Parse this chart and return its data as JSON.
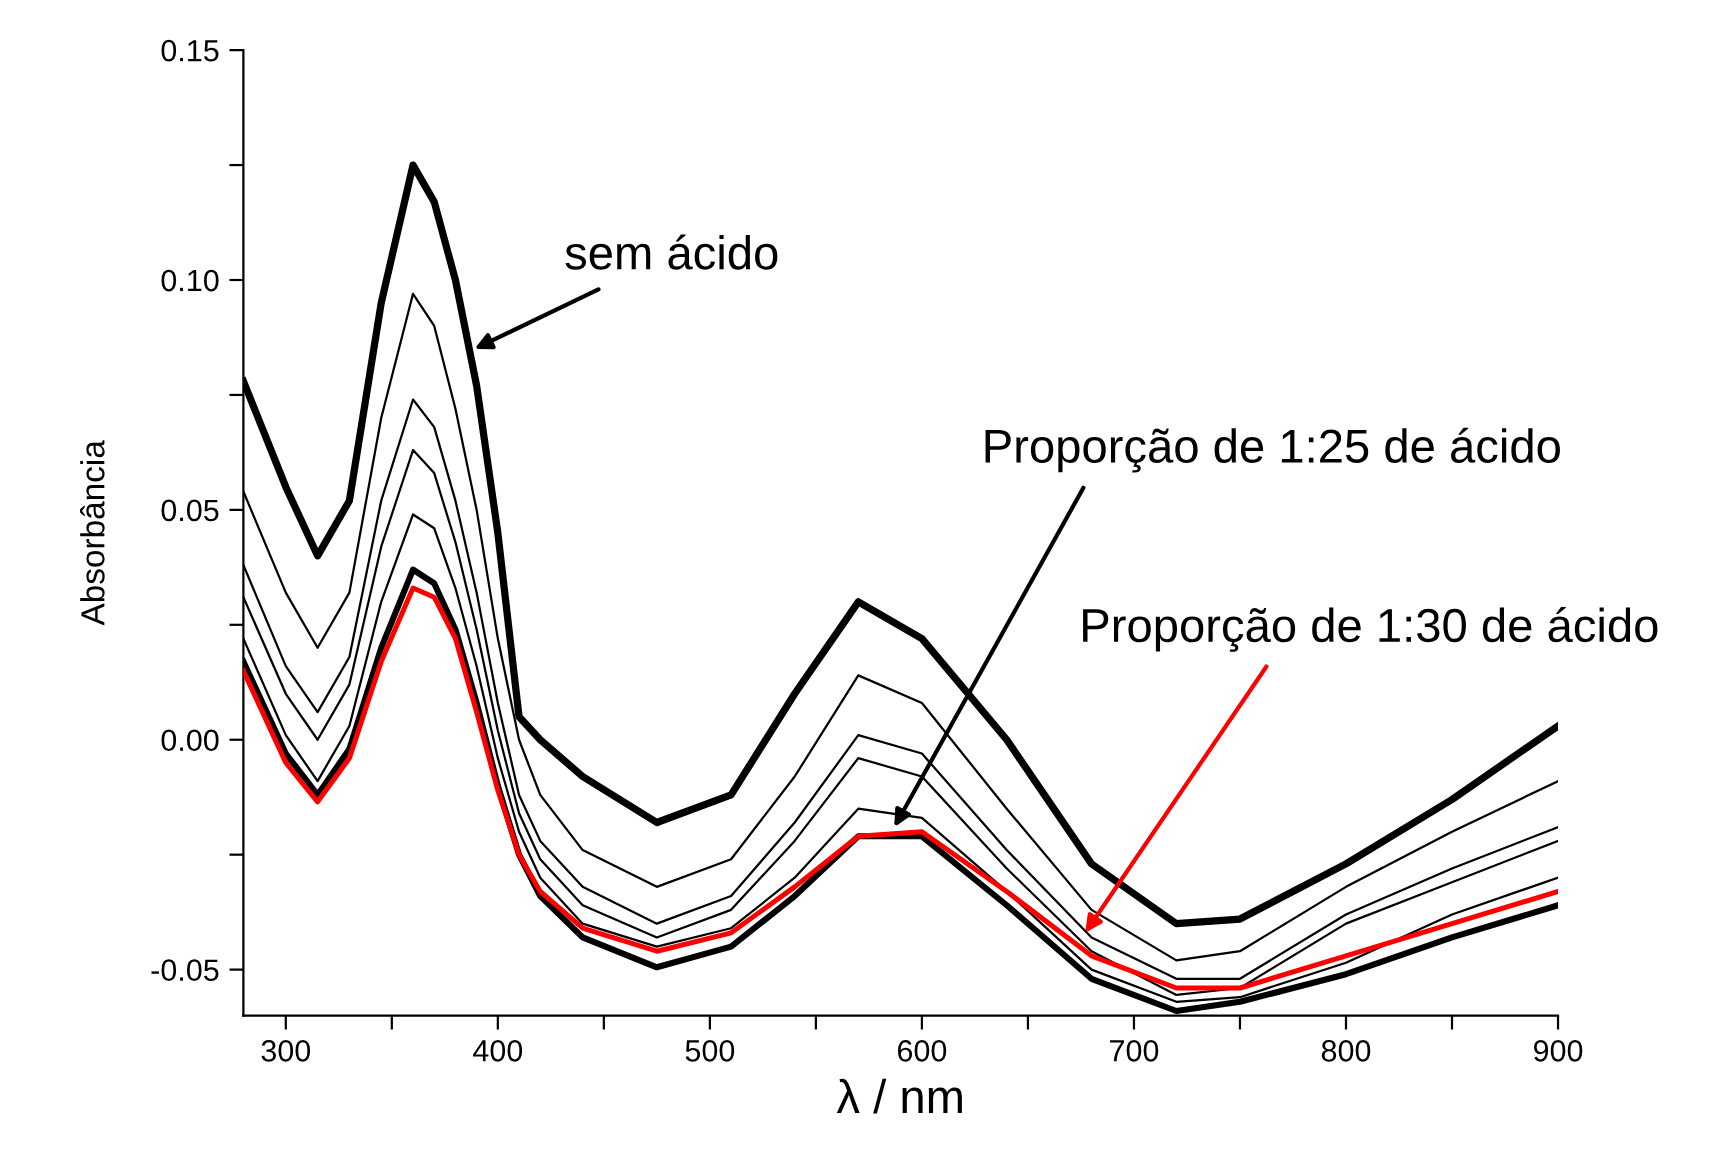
{
  "chart_data": {
    "type": "line",
    "xlabel": "λ / nm",
    "ylabel": "Absorbância",
    "x": [
      280,
      300,
      315,
      330,
      345,
      360,
      370,
      380,
      390,
      400,
      410,
      420,
      440,
      475,
      510,
      540,
      570,
      600,
      640,
      680,
      720,
      750,
      800,
      850,
      900
    ],
    "series": [
      {
        "color": "#000000",
        "values": [
          0.078,
          0.055,
          0.04,
          0.052,
          0.095,
          0.125,
          0.117,
          0.1,
          0.077,
          0.045,
          0.005,
          0.0,
          -0.008,
          -0.018,
          -0.012,
          0.01,
          0.03,
          0.022,
          0.0,
          -0.027,
          -0.04,
          -0.039,
          -0.027,
          -0.013,
          0.003
        ]
      },
      {
        "color": "#000000",
        "values": [
          0.054,
          0.032,
          0.02,
          0.032,
          0.07,
          0.097,
          0.09,
          0.072,
          0.05,
          0.022,
          0.0,
          -0.012,
          -0.024,
          -0.032,
          -0.026,
          -0.008,
          0.014,
          0.008,
          -0.015,
          -0.037,
          -0.048,
          -0.046,
          -0.032,
          -0.02,
          -0.009
        ]
      },
      {
        "color": "#000000",
        "values": [
          0.038,
          0.016,
          0.006,
          0.018,
          0.052,
          0.074,
          0.068,
          0.052,
          0.032,
          0.008,
          -0.012,
          -0.022,
          -0.032,
          -0.04,
          -0.034,
          -0.018,
          0.001,
          -0.003,
          -0.024,
          -0.043,
          -0.052,
          -0.052,
          -0.038,
          -0.028,
          -0.019
        ]
      },
      {
        "color": "#000000",
        "values": [
          0.031,
          0.01,
          0.0,
          0.012,
          0.042,
          0.063,
          0.058,
          0.043,
          0.024,
          0.002,
          -0.016,
          -0.026,
          -0.036,
          -0.043,
          -0.037,
          -0.022,
          -0.004,
          -0.008,
          -0.028,
          -0.046,
          -0.0555,
          -0.054,
          -0.04,
          -0.031,
          -0.022
        ]
      },
      {
        "color": "#000000",
        "values": [
          0.022,
          0.001,
          -0.009,
          0.003,
          0.03,
          0.049,
          0.046,
          0.033,
          0.016,
          -0.004,
          -0.02,
          -0.03,
          -0.04,
          -0.045,
          -0.041,
          -0.03,
          -0.015,
          -0.017,
          -0.033,
          -0.05,
          -0.057,
          -0.056,
          -0.0485,
          -0.038,
          -0.03
        ]
      },
      {
        "color": "#000000",
        "values": [
          0.017,
          -0.003,
          -0.012,
          -0.002,
          0.02,
          0.037,
          0.034,
          0.024,
          0.008,
          -0.01,
          -0.025,
          -0.034,
          -0.043,
          -0.0495,
          -0.045,
          -0.034,
          -0.021,
          -0.021,
          -0.036,
          -0.052,
          -0.059,
          -0.057,
          -0.051,
          -0.043,
          -0.036
        ]
      },
      {
        "color": "#ff0000",
        "values": [
          0.015,
          -0.005,
          -0.0135,
          -0.004,
          0.017,
          0.033,
          0.031,
          0.022,
          0.006,
          -0.011,
          -0.025,
          -0.033,
          -0.041,
          -0.046,
          -0.042,
          -0.032,
          -0.021,
          -0.02,
          -0.033,
          -0.047,
          -0.054,
          -0.054,
          -0.047,
          -0.04,
          -0.033
        ]
      }
    ],
    "annotations": [
      {
        "text": "sem ácido",
        "x": 389,
        "y": 0.085
      },
      {
        "text": "Proporção de 1:25 de ácido",
        "x": 587,
        "y": -0.019
      },
      {
        "text": "Proporção de 1:30 de ácido",
        "x": 677,
        "y": -0.042
      }
    ],
    "xlim": [
      280,
      900
    ],
    "xticks": [
      300,
      {
        "value": 350,
        "label": null
      },
      400,
      {
        "value": 450,
        "label": null
      },
      500,
      {
        "value": 550,
        "label": null
      },
      600,
      {
        "value": 650,
        "label": null
      },
      700,
      {
        "value": 750,
        "label": null
      },
      800,
      {
        "value": 850,
        "label": null
      },
      900
    ],
    "ylim": [
      -0.06,
      0.15
    ],
    "yticks": [
      {
        "value": -0.05,
        "label": "-0.05"
      },
      {
        "value": -0.025,
        "label": null
      },
      {
        "value": 0,
        "label": "0.00"
      },
      {
        "value": 0.025,
        "label": null
      },
      {
        "value": 0.05,
        "label": "0.05"
      },
      {
        "value": 0.075,
        "label": null
      },
      {
        "value": 0.1,
        "label": "0.10"
      },
      {
        "value": 0.125,
        "label": null
      },
      {
        "value": 0.15,
        "label": "0.15"
      }
    ],
    "grid": false,
    "marker": "none",
    "line_style": "solid"
  }
}
